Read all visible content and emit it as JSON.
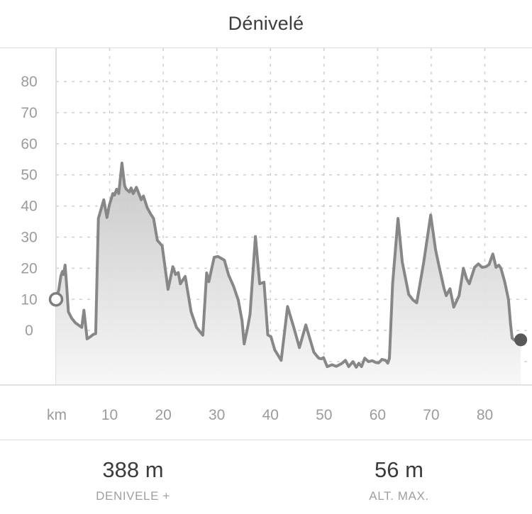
{
  "title": "Dénivelé",
  "stats": [
    {
      "value": "388 m",
      "label": "DENIVELE +"
    },
    {
      "value": "56 m",
      "label": "ALT. MAX."
    }
  ],
  "chart_data": {
    "type": "area",
    "title": "Dénivelé",
    "xlabel": "km",
    "x_unit_label": "km",
    "xlim": [
      0,
      88.8
    ],
    "ylim": [
      -17.5,
      90.7
    ],
    "x_ticks": [
      10,
      20,
      30,
      40,
      50,
      60,
      70,
      80
    ],
    "y_ticks_labeled": [
      0,
      10,
      20,
      30,
      40,
      50,
      60,
      70,
      80
    ],
    "y_ticks_unlabeled": [
      -10
    ],
    "grid": "dashed",
    "legend": "none",
    "colors": {
      "line": "#878787",
      "area_top": "#c3c3c3",
      "area_bottom": "#f7f7f7",
      "grid": "#cfcfcf",
      "axis": "#d4d4d4",
      "tick_text": "#9b9b9b",
      "border": "#d9d9d9",
      "start_marker_stroke": "#7d7d7d",
      "end_marker_fill": "#58585a"
    },
    "start_point": {
      "x": 0,
      "y": 10,
      "style": "open"
    },
    "end_point": {
      "x": 86.7,
      "y": -3,
      "style": "filled"
    },
    "points": [
      [
        0,
        10
      ],
      [
        0.5,
        13
      ],
      [
        0.9,
        17.5
      ],
      [
        1.2,
        19
      ],
      [
        1.4,
        18
      ],
      [
        1.7,
        21
      ],
      [
        2.0,
        14
      ],
      [
        2.3,
        6
      ],
      [
        2.9,
        4
      ],
      [
        3.6,
        2.5
      ],
      [
        4.4,
        1.5
      ],
      [
        4.8,
        1
      ],
      [
        5.2,
        6.5
      ],
      [
        5.8,
        -2.7
      ],
      [
        6.4,
        -2
      ],
      [
        7.0,
        -1.2
      ],
      [
        7.4,
        -1
      ],
      [
        7.9,
        36
      ],
      [
        8.9,
        42
      ],
      [
        9.5,
        36.3
      ],
      [
        9.9,
        40
      ],
      [
        10.6,
        44
      ],
      [
        10.9,
        43.5
      ],
      [
        11.3,
        45.4
      ],
      [
        11.7,
        44
      ],
      [
        12.3,
        53.8
      ],
      [
        12.8,
        46.5
      ],
      [
        13.1,
        45.4
      ],
      [
        13.7,
        44.5
      ],
      [
        14.0,
        45.8
      ],
      [
        14.4,
        44
      ],
      [
        15.0,
        46
      ],
      [
        15.9,
        42
      ],
      [
        16.3,
        43.2
      ],
      [
        17.0,
        39.5
      ],
      [
        17.7,
        37.3
      ],
      [
        18.2,
        36
      ],
      [
        18.9,
        29
      ],
      [
        19.8,
        27.2
      ],
      [
        20.9,
        13.2
      ],
      [
        21.8,
        20.5
      ],
      [
        22.3,
        18
      ],
      [
        22.8,
        18.6
      ],
      [
        23.2,
        15
      ],
      [
        24.1,
        17.4
      ],
      [
        25.2,
        6
      ],
      [
        26.2,
        1
      ],
      [
        26.9,
        -0.5
      ],
      [
        27.4,
        -1.5
      ],
      [
        28.1,
        18.5
      ],
      [
        28.5,
        15.7
      ],
      [
        29.5,
        23.5
      ],
      [
        30.2,
        23.8
      ],
      [
        31.4,
        22.6
      ],
      [
        32.2,
        17.8
      ],
      [
        33.1,
        14.3
      ],
      [
        34.0,
        9.8
      ],
      [
        34.7,
        3.2
      ],
      [
        35.1,
        -4.3
      ],
      [
        35.8,
        1.4
      ],
      [
        36.2,
        5.2
      ],
      [
        37.2,
        30.2
      ],
      [
        38.0,
        15
      ],
      [
        38.8,
        15.5
      ],
      [
        39.5,
        -1.4
      ],
      [
        40.1,
        -2
      ],
      [
        40.8,
        -6.2
      ],
      [
        42.0,
        -9.6
      ],
      [
        43.2,
        7.7
      ],
      [
        44.4,
        0.7
      ],
      [
        45.4,
        -5.5
      ],
      [
        46.6,
        1.8
      ],
      [
        48.1,
        -7
      ],
      [
        49.0,
        -8.9
      ],
      [
        49.5,
        -9.1
      ],
      [
        49.9,
        -8.7
      ],
      [
        50.6,
        -11.6
      ],
      [
        51.5,
        -11
      ],
      [
        52.3,
        -11.5
      ],
      [
        53.3,
        -10.6
      ],
      [
        54.0,
        -9.6
      ],
      [
        54.6,
        -11.6
      ],
      [
        55.4,
        -10
      ],
      [
        56.0,
        -11.8
      ],
      [
        56.5,
        -10.5
      ],
      [
        57.0,
        -11.6
      ],
      [
        57.6,
        -8.9
      ],
      [
        58.3,
        -10
      ],
      [
        59.0,
        -9.7
      ],
      [
        59.7,
        -10.3
      ],
      [
        60.2,
        -10.4
      ],
      [
        60.8,
        -9.3
      ],
      [
        61.5,
        -9.6
      ],
      [
        61.9,
        -10.5
      ],
      [
        62.2,
        -8.9
      ],
      [
        62.8,
        15
      ],
      [
        63.8,
        36
      ],
      [
        64.6,
        22
      ],
      [
        65.8,
        11.6
      ],
      [
        66.6,
        9.8
      ],
      [
        67.3,
        8.9
      ],
      [
        68.6,
        22
      ],
      [
        69.9,
        37.1
      ],
      [
        70.8,
        26
      ],
      [
        71.5,
        20.3
      ],
      [
        72.4,
        13.4
      ],
      [
        72.8,
        11.2
      ],
      [
        73.5,
        13.4
      ],
      [
        74.2,
        7.5
      ],
      [
        75.2,
        11.2
      ],
      [
        76.0,
        20
      ],
      [
        76.6,
        16.6
      ],
      [
        77.1,
        15
      ],
      [
        78.1,
        20.3
      ],
      [
        78.8,
        21.4
      ],
      [
        79.5,
        20.3
      ],
      [
        80.2,
        20.5
      ],
      [
        80.8,
        21.2
      ],
      [
        81.5,
        24.6
      ],
      [
        82.1,
        20.3
      ],
      [
        82.6,
        21
      ],
      [
        83.0,
        20
      ],
      [
        83.7,
        15.7
      ],
      [
        84.4,
        10
      ],
      [
        84.8,
        2
      ],
      [
        85.1,
        -2.5
      ],
      [
        85.6,
        -3.2
      ],
      [
        86.1,
        -2.7
      ],
      [
        86.7,
        -3
      ]
    ]
  }
}
